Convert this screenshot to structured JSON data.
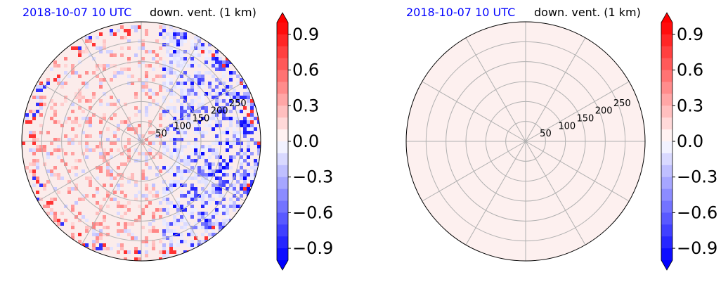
{
  "panels": [
    {
      "date_label": "2018-10-07 10 UTC",
      "var_label": "down. vent. (1 km)",
      "mode": "textured"
    },
    {
      "date_label": "2018-10-07 10 UTC",
      "var_label": "down. vent. (1 km)",
      "mode": "flat"
    }
  ],
  "chart_data": [
    {
      "type": "heatmap",
      "subtype": "polar",
      "title": "2018-10-07 10 UTC",
      "variable": "down. vent. (1 km)",
      "r_ticks": [
        50,
        100,
        150,
        200,
        250
      ],
      "r_max": 300,
      "theta_gridlines_deg": [
        0,
        30,
        60,
        90,
        120,
        150,
        180,
        210,
        240,
        270,
        300,
        330
      ],
      "grid": true,
      "field_summary": "east half dominated by negative values (to about -0.9), west half weak positive values (about 0.1-0.6), near-zero background",
      "colorbar": {
        "min": -1.0,
        "max": 1.0,
        "ticks": [
          -0.9,
          -0.6,
          -0.3,
          0.0,
          0.3,
          0.6,
          0.9
        ],
        "tick_labels": [
          "−0.9",
          "−0.6",
          "−0.3",
          "0.0",
          "0.3",
          "0.6",
          "0.9"
        ],
        "extend": "both",
        "colormap": "bwr",
        "levels": 20
      }
    },
    {
      "type": "heatmap",
      "subtype": "polar",
      "title": "2018-10-07 10 UTC",
      "variable": "down. vent. (1 km)",
      "r_ticks": [
        50,
        100,
        150,
        200,
        250
      ],
      "r_max": 300,
      "theta_gridlines_deg": [
        0,
        30,
        60,
        90,
        120,
        150,
        180,
        210,
        240,
        270,
        300,
        330
      ],
      "grid": true,
      "field_value": 0.0,
      "field_summary": "uniform field, single near-zero level",
      "colorbar": {
        "min": -1.0,
        "max": 1.0,
        "ticks": [
          -0.9,
          -0.6,
          -0.3,
          0.0,
          0.3,
          0.6,
          0.9
        ],
        "tick_labels": [
          "−0.9",
          "−0.6",
          "−0.3",
          "0.0",
          "0.3",
          "0.6",
          "0.9"
        ],
        "extend": "both",
        "colormap": "bwr",
        "levels": 20
      }
    }
  ],
  "colors": {
    "title_date": "#0000ff",
    "grid": "#b0b0b0",
    "flat_fill": "#fdf0ef"
  }
}
